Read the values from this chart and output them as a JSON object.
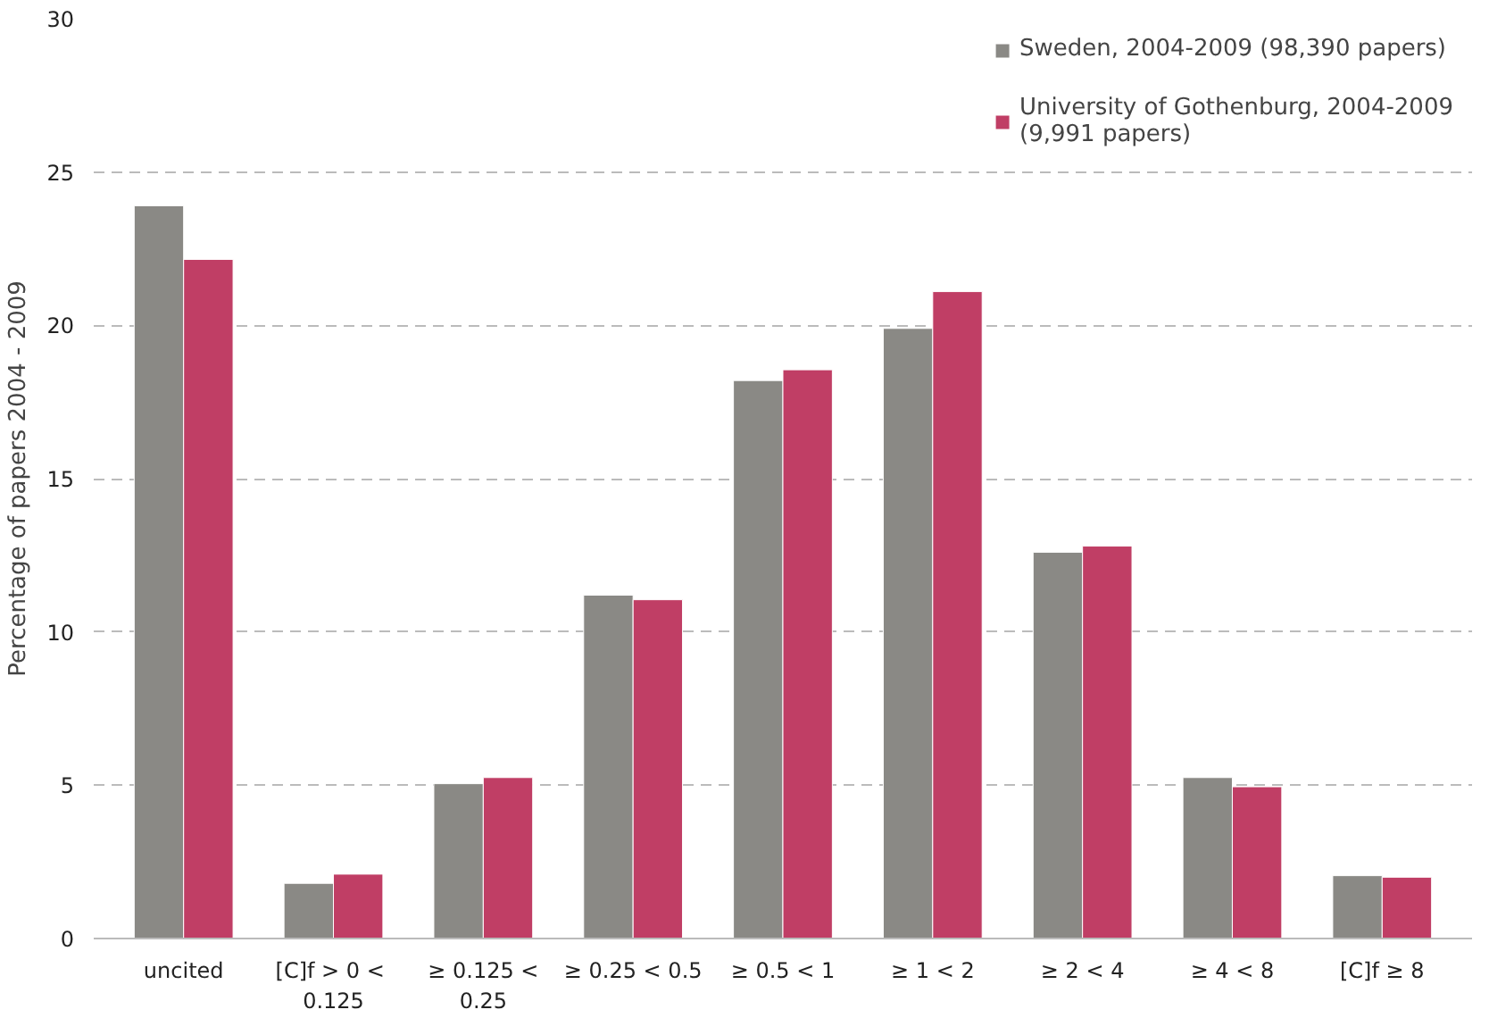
{
  "chart_data": {
    "type": "bar",
    "ylabel": "Percentage of papers 2004 - 2009",
    "categories": [
      "uncited",
      "[C]f  > 0 <\n0.125",
      "≥ 0.125 <\n0.25",
      "≥ 0.25 < 0.5",
      "≥ 0.5 < 1",
      "≥ 1 < 2",
      "≥ 2 < 4",
      "≥ 4 < 8",
      "[C]f ≥ 8"
    ],
    "series": [
      {
        "name": "Sweden, 2004-2009 (98,390 papers)",
        "color": "#8a8985",
        "values": [
          23.9,
          1.8,
          5.05,
          11.2,
          18.2,
          19.9,
          12.6,
          5.25,
          2.05
        ]
      },
      {
        "name": "University of Gothenburg, 2004-2009\n(9,991 papers)",
        "color": "#c03e65",
        "values": [
          22.15,
          2.1,
          5.25,
          11.05,
          18.55,
          21.1,
          12.8,
          4.95,
          2.0
        ]
      }
    ],
    "ylim": [
      0,
      30
    ],
    "yticks": [
      0,
      5,
      10,
      15,
      20,
      25,
      30
    ],
    "grid": "y",
    "legend": "top right"
  }
}
